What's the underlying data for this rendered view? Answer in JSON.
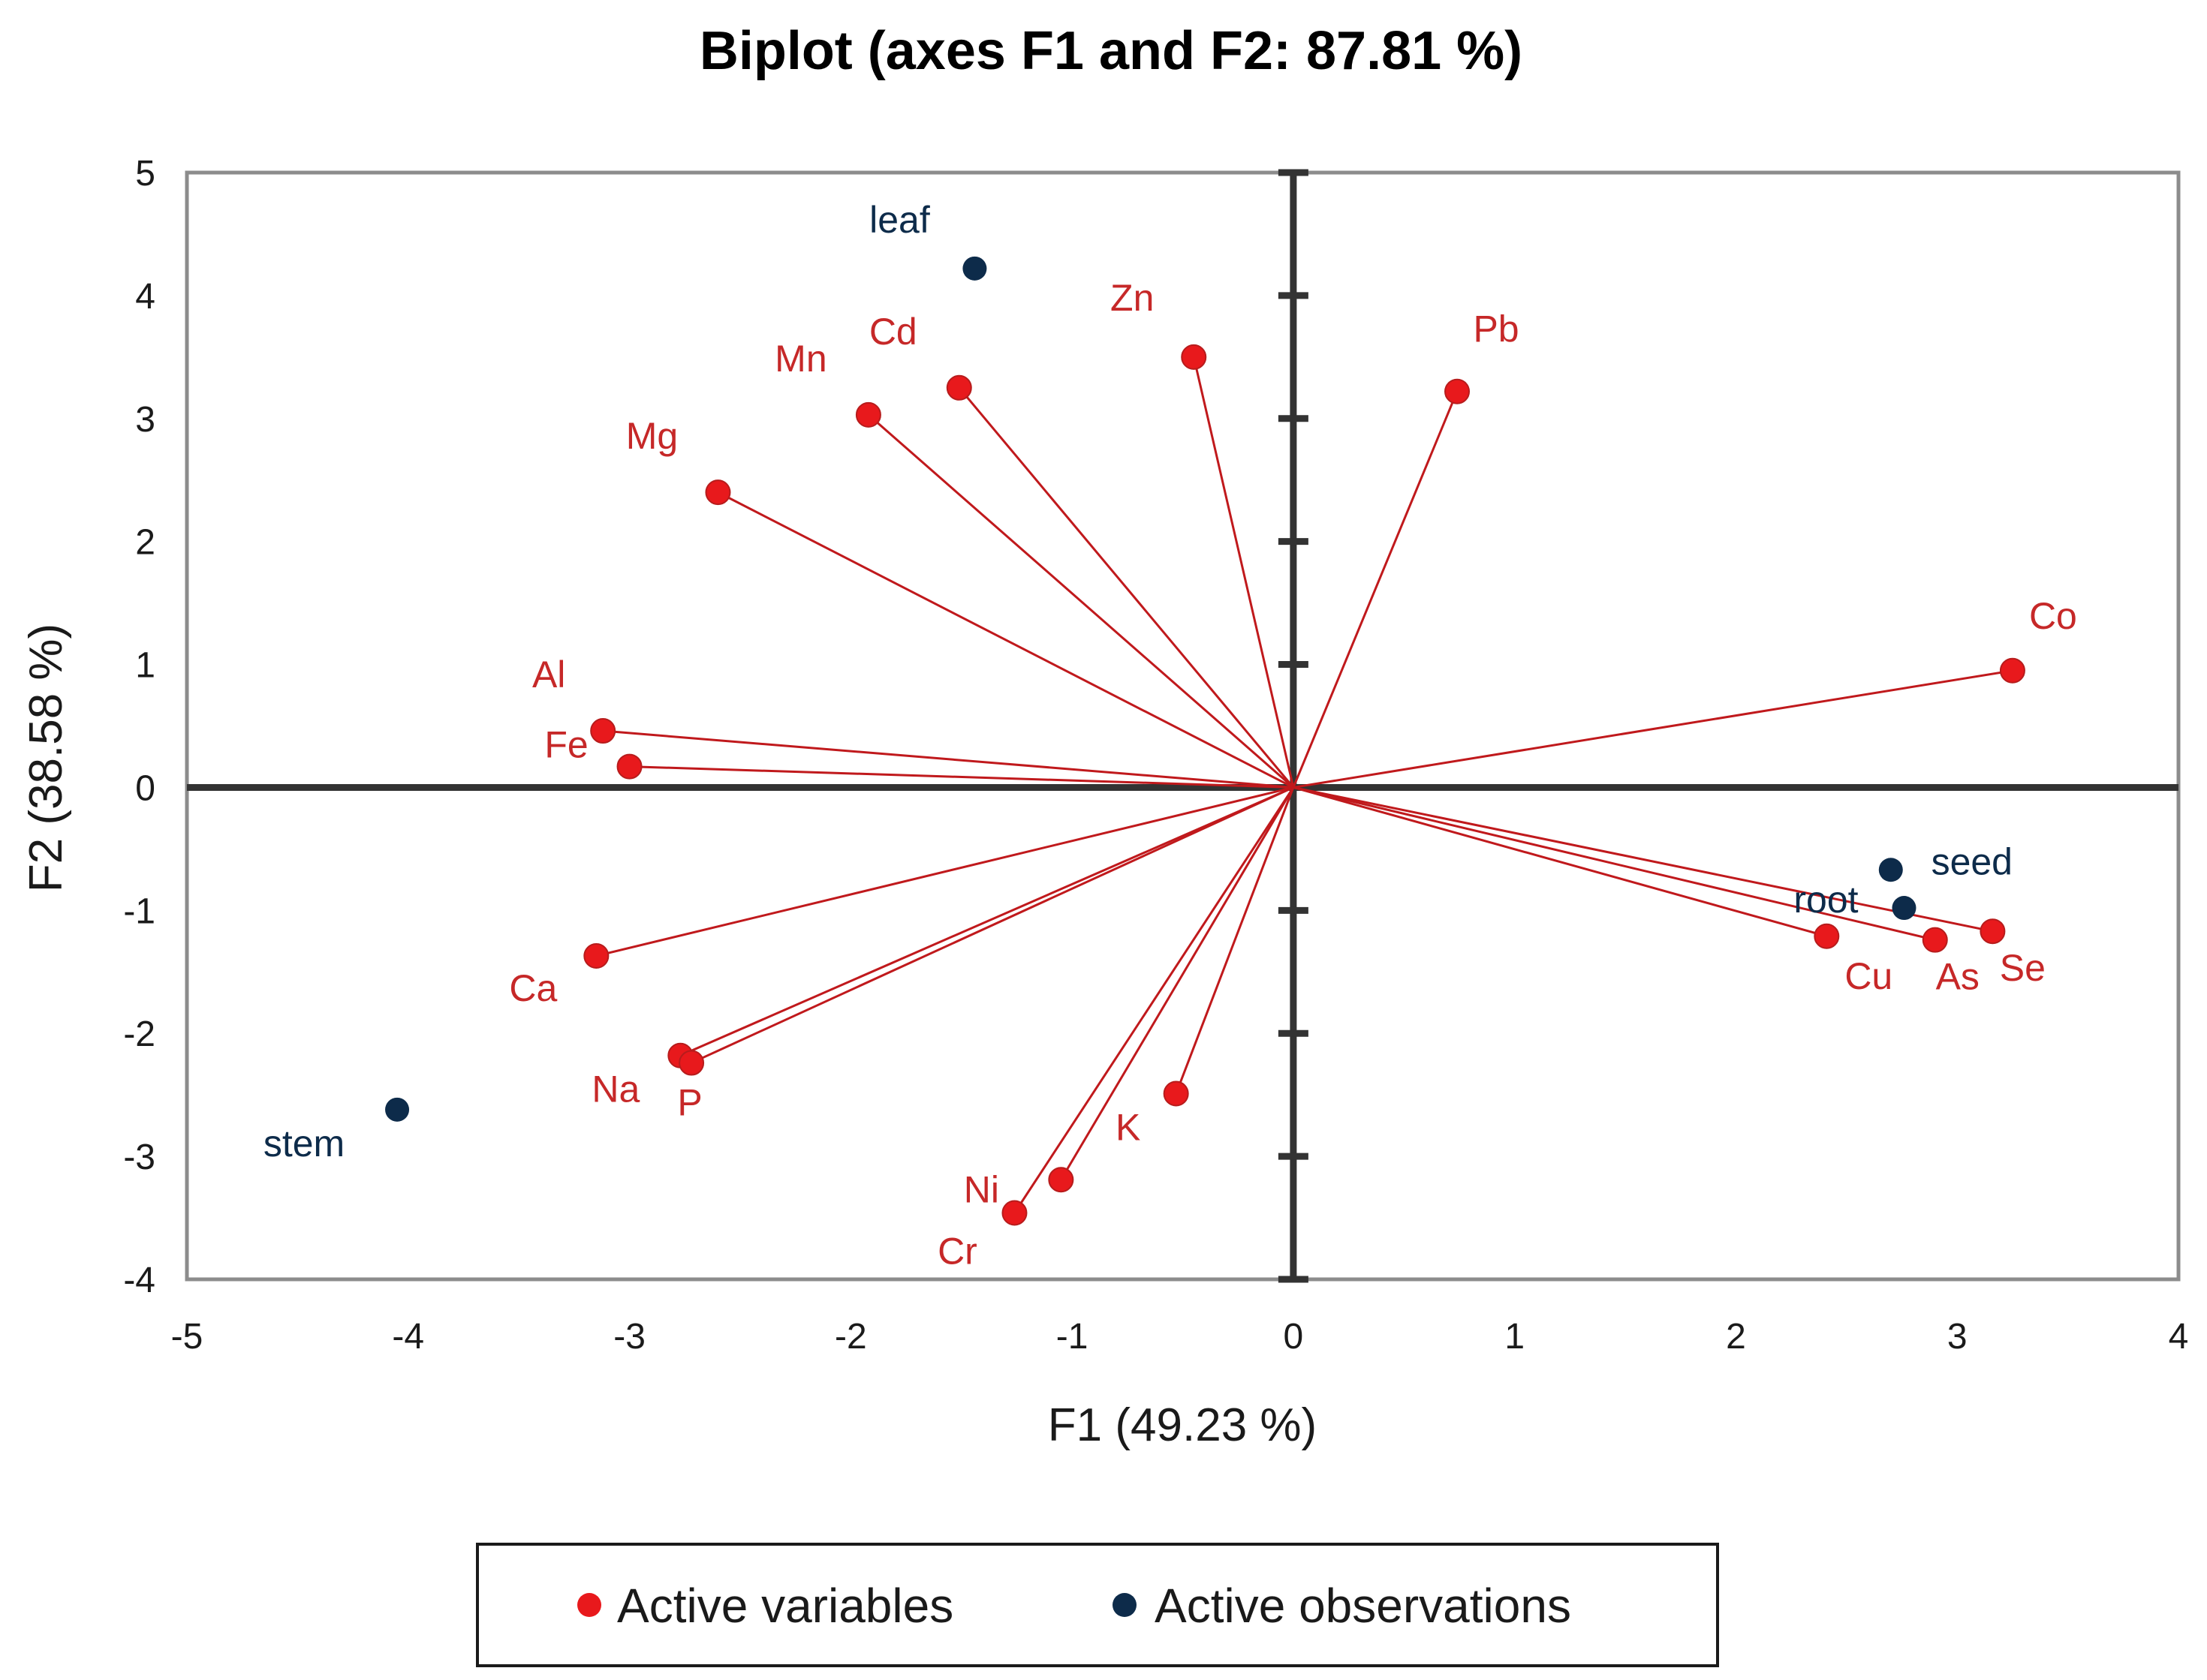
{
  "chart_data": {
    "type": "scatter",
    "subtype": "pca-biplot",
    "title": "Biplot (axes F1 and F2: 87.81 %)",
    "xlabel": "F1 (49.23 %)",
    "ylabel": "F2 (38.58 %)",
    "xlim": [
      -5,
      4
    ],
    "ylim": [
      -4,
      5
    ],
    "xticks": [
      -5,
      -4,
      -3,
      -2,
      -1,
      0,
      1,
      2,
      3,
      4
    ],
    "yticks": [
      -4,
      -3,
      -2,
      -1,
      0,
      1,
      2,
      3,
      4,
      5
    ],
    "colors": {
      "variables": "#e8191c",
      "vector_lines": "#c0191c",
      "variable_labels": "#c62828",
      "observations": "#0d2b4a",
      "zero_axes": "#333333",
      "frame": "#8c8c8c"
    },
    "legend": {
      "position": "bottom",
      "entries": [
        "Active variables",
        "Active observations"
      ]
    },
    "series": [
      {
        "name": "Active variables",
        "kind": "vectors",
        "points": [
          {
            "label": "Pb",
            "x": 0.74,
            "y": 3.22
          },
          {
            "label": "Zn",
            "x": -0.45,
            "y": 3.5
          },
          {
            "label": "Cd",
            "x": -1.51,
            "y": 3.25
          },
          {
            "label": "Mn",
            "x": -1.92,
            "y": 3.03
          },
          {
            "label": "Mg",
            "x": -2.6,
            "y": 2.4
          },
          {
            "label": "Al",
            "x": -3.12,
            "y": 0.46
          },
          {
            "label": "Fe",
            "x": -3.0,
            "y": 0.17
          },
          {
            "label": "Co",
            "x": 3.25,
            "y": 0.95
          },
          {
            "label": "Ca",
            "x": -3.15,
            "y": -1.37
          },
          {
            "label": "Na",
            "x": -2.77,
            "y": -2.18
          },
          {
            "label": "P",
            "x": -2.72,
            "y": -2.24
          },
          {
            "label": "K",
            "x": -0.53,
            "y": -2.49
          },
          {
            "label": "Ni",
            "x": -1.05,
            "y": -3.19
          },
          {
            "label": "Cr",
            "x": -1.26,
            "y": -3.46
          },
          {
            "label": "Cu",
            "x": 2.41,
            "y": -1.21
          },
          {
            "label": "As",
            "x": 2.9,
            "y": -1.24
          },
          {
            "label": "Se",
            "x": 3.16,
            "y": -1.17
          }
        ]
      },
      {
        "name": "Active observations",
        "kind": "points",
        "points": [
          {
            "label": "leaf",
            "x": -1.44,
            "y": 4.22
          },
          {
            "label": "seed",
            "x": 2.7,
            "y": -0.67
          },
          {
            "label": "root",
            "x": 2.76,
            "y": -0.98
          },
          {
            "label": "stem",
            "x": -4.05,
            "y": -2.62
          }
        ]
      }
    ]
  }
}
